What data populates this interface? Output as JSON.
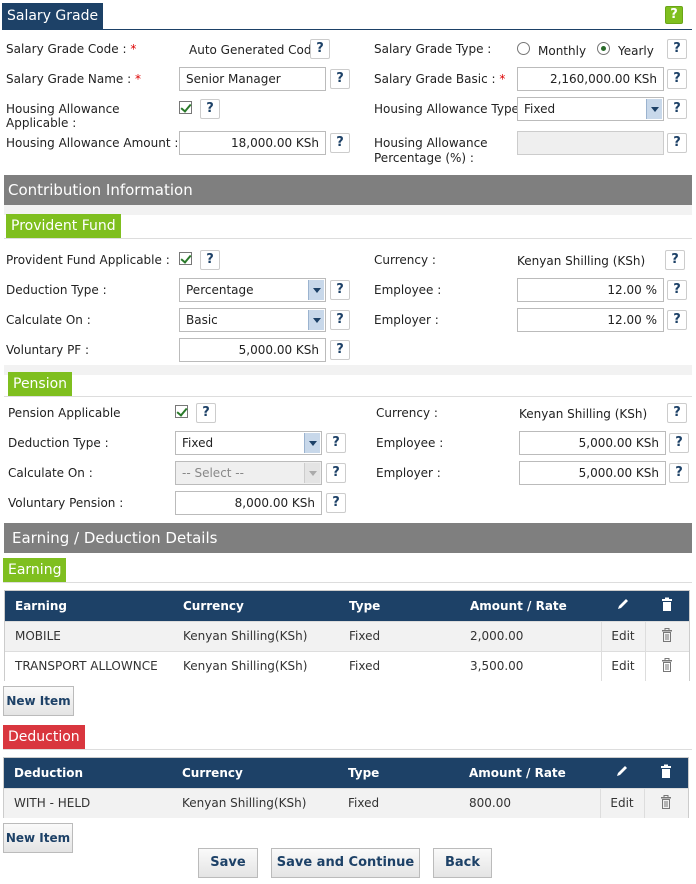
{
  "header": {
    "title": "Salary Grade",
    "help": "?"
  },
  "form": {
    "code_label": "Salary Grade Code :",
    "code_value": "Auto Generated Code",
    "type_label": "Salary Grade Type :",
    "type_monthly": "Monthly",
    "type_yearly": "Yearly",
    "name_label": "Salary Grade Name :",
    "name_value": "Senior Manager",
    "basic_label": "Salary Grade Basic :",
    "basic_value": "2,160,000.00 KSh",
    "housing_applicable_label": "Housing Allowance Applicable :",
    "housing_type_label": "Housing Allowance Type :",
    "housing_type_value": "Fixed",
    "housing_amount_label": "Housing Allowance Amount :",
    "housing_amount_value": "18,000.00 KSh",
    "housing_pct_label_1": "Housing Allowance",
    "housing_pct_label_2": "Percentage (%) :",
    "required_mark": "*"
  },
  "contribution": {
    "title": "Contribution Information"
  },
  "provident": {
    "tab": "Provident Fund",
    "applicable_label": "Provident Fund Applicable :",
    "currency_label": "Currency :",
    "currency_value": "Kenyan Shilling (KSh)",
    "deduction_type_label": "Deduction Type :",
    "deduction_type_value": "Percentage",
    "employee_label": "Employee :",
    "employee_value": "12.00 %",
    "calculate_on_label": "Calculate On :",
    "calculate_on_value": "Basic",
    "employer_label": "Employer :",
    "employer_value": "12.00 %",
    "voluntary_label": "Voluntary PF :",
    "voluntary_value": "5,000.00 KSh"
  },
  "pension": {
    "tab": "Pension",
    "applicable_label": "Pension Applicable",
    "currency_label": "Currency :",
    "currency_value": "Kenyan Shilling (KSh)",
    "deduction_type_label": "Deduction Type :",
    "deduction_type_value": "Fixed",
    "employee_label": "Employee :",
    "employee_value": "5,000.00 KSh",
    "calculate_on_label": "Calculate On :",
    "calculate_on_value": "-- Select --",
    "employer_label": "Employer :",
    "employer_value": "5,000.00 KSh",
    "voluntary_label": "Voluntary Pension :",
    "voluntary_value": "8,000.00 KSh"
  },
  "details": {
    "title": "Earning / Deduction Details"
  },
  "earning": {
    "tab": "Earning",
    "columns": [
      "Earning",
      "Currency",
      "Type",
      "Amount / Rate"
    ],
    "rows": [
      {
        "name": "MOBILE",
        "currency": "Kenyan Shilling(KSh)",
        "type": "Fixed",
        "amount": "2,000.00",
        "edit": "Edit"
      },
      {
        "name": "TRANSPORT ALLOWNCE",
        "currency": "Kenyan Shilling(KSh)",
        "type": "Fixed",
        "amount": "3,500.00",
        "edit": "Edit"
      }
    ],
    "new_item": "New Item"
  },
  "deduction": {
    "tab": "Deduction",
    "columns": [
      "Deduction",
      "Currency",
      "Type",
      "Amount / Rate"
    ],
    "rows": [
      {
        "name": "WITH - HELD",
        "currency": "Kenyan Shilling(KSh)",
        "type": "Fixed",
        "amount": "800.00",
        "edit": "Edit"
      }
    ],
    "new_item": "New Item"
  },
  "footer": {
    "save": "Save",
    "save_continue": "Save and Continue",
    "back": "Back"
  },
  "colors": {
    "navy": "#1d4167",
    "green": "#7fbf1f",
    "red": "#d9363e",
    "grey_bar": "#7f7f7f"
  }
}
